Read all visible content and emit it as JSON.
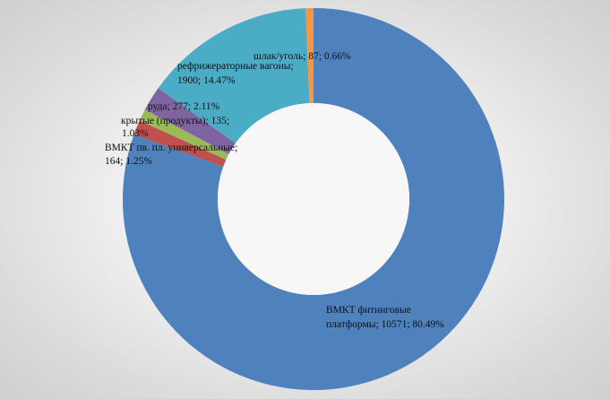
{
  "chart_data": {
    "type": "pie",
    "variant": "donut",
    "start_angle": "top, clockwise",
    "legend": "none",
    "slices": [
      {
        "name": "ВМКТ фитинговые платформы",
        "value": 10571,
        "percent": 80.49,
        "color": "#4f81bd",
        "label_line1": "ВМКТ фитинговые",
        "label_line2": "платформы; 10571; 80.49%"
      },
      {
        "name": "ВМКТ пв. пл. универсальные",
        "value": 164,
        "percent": 1.25,
        "color": "#c0504d",
        "label_line1": "ВМКТ пв. пл. универсальные;",
        "label_line2": "164; 1.25%"
      },
      {
        "name": "крытые (продукты)",
        "value": 135,
        "percent": 1.03,
        "color": "#9bbb59",
        "label_line1": "крытые (продукты); 135;",
        "label_line2": "1.03%"
      },
      {
        "name": "руда",
        "value": 277,
        "percent": 2.11,
        "color": "#8064a2",
        "label_line1": "руда; 277; 2.11%",
        "label_line2": ""
      },
      {
        "name": "рефрижераторные вагоны",
        "value": 1900,
        "percent": 14.47,
        "color": "#4bacc6",
        "label_line1": "рефрижераторные вагоны;",
        "label_line2": "1900; 14.47%"
      },
      {
        "name": "шлак/уголь",
        "value": 87,
        "percent": 0.66,
        "color": "#f79646",
        "label_line1": "шлак/уголь; 87; 0.66%",
        "label_line2": ""
      }
    ]
  }
}
